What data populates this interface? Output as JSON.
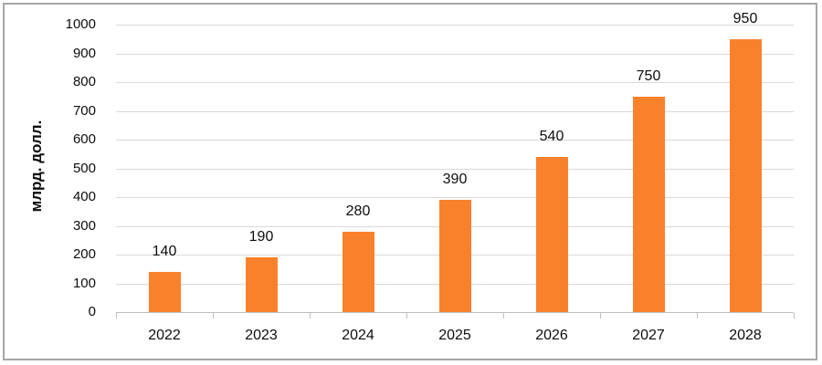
{
  "chart_data": {
    "type": "bar",
    "title": "",
    "xlabel": "",
    "ylabel": "млрд. долл.",
    "categories": [
      "2022",
      "2023",
      "2024",
      "2025",
      "2026",
      "2027",
      "2028"
    ],
    "values": [
      140,
      190,
      280,
      390,
      540,
      750,
      950
    ],
    "data_labels": [
      "140",
      "190",
      "280",
      "390",
      "540",
      "750",
      "950"
    ],
    "yticks": [
      0,
      100,
      200,
      300,
      400,
      500,
      600,
      700,
      800,
      900,
      1000
    ],
    "ylim": [
      0,
      1000
    ],
    "grid": true,
    "legend_position": "none",
    "colors": {
      "bar": "#f9812b",
      "gridline": "#d9d9d9",
      "axis_line": "#bfbfbf",
      "text": "#0d0d0d",
      "frame_border": "#a6a6a6"
    }
  }
}
